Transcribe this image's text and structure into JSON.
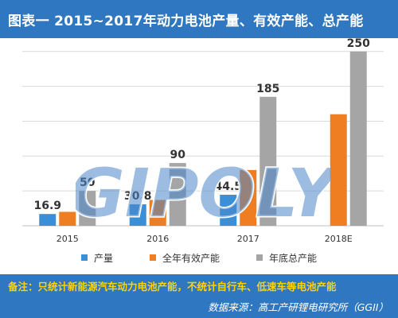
{
  "header": {
    "title": "图表一 2015~2017年动力电池产量、有效产能、总产能"
  },
  "chart_data": {
    "type": "bar",
    "title": "图表一 2015~2017年动力电池产量、有效产能、总产能",
    "categories": [
      "2015",
      "2016",
      "2017",
      "2018E"
    ],
    "series": [
      {
        "name": "产量",
        "color": "#3a8fd6",
        "values": [
          16.9,
          30.8,
          44.5,
          null
        ],
        "labels": [
          "16.9",
          "30.8",
          "44.5",
          ""
        ]
      },
      {
        "name": "全年有效产能",
        "color": "#ef7d22",
        "values": [
          20,
          37,
          80,
          160
        ],
        "labels": [
          "",
          "",
          "",
          ""
        ]
      },
      {
        "name": "年底总产能",
        "color": "#a5a5a5",
        "values": [
          50,
          90,
          185,
          250
        ],
        "labels": [
          "50",
          "90",
          "185",
          "250"
        ]
      }
    ],
    "ylim": [
      0,
      260
    ],
    "grid": true,
    "legend": "bottom"
  },
  "footer": {
    "note": "备注：只统计新能源汽车动力电池产能，不统计自行车、低速车等电池产能",
    "source": "数据来源：高工产研锂电研究所（GGII）"
  },
  "watermark": {
    "text": "GIPOLY"
  },
  "colors": {
    "banner": "#2f77c0",
    "note_text": "#ffd400",
    "grid": "#d9d9d9"
  }
}
